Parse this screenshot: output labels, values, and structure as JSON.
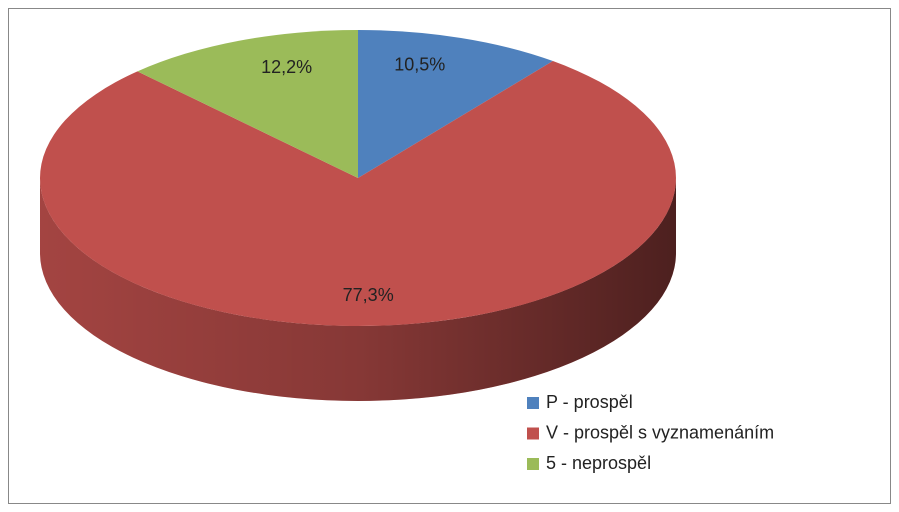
{
  "chart_data": {
    "type": "pie",
    "categories": [
      "P - prospěl",
      "V - prospěl s vyznamenáním",
      "5 - neprospěl"
    ],
    "values": [
      10.5,
      77.3,
      12.2
    ],
    "value_labels": [
      "10,5%",
      "77,3%",
      "12,2%"
    ],
    "colors": [
      "#4f81bd",
      "#c0504d",
      "#9bbb59"
    ],
    "legend": "right"
  }
}
